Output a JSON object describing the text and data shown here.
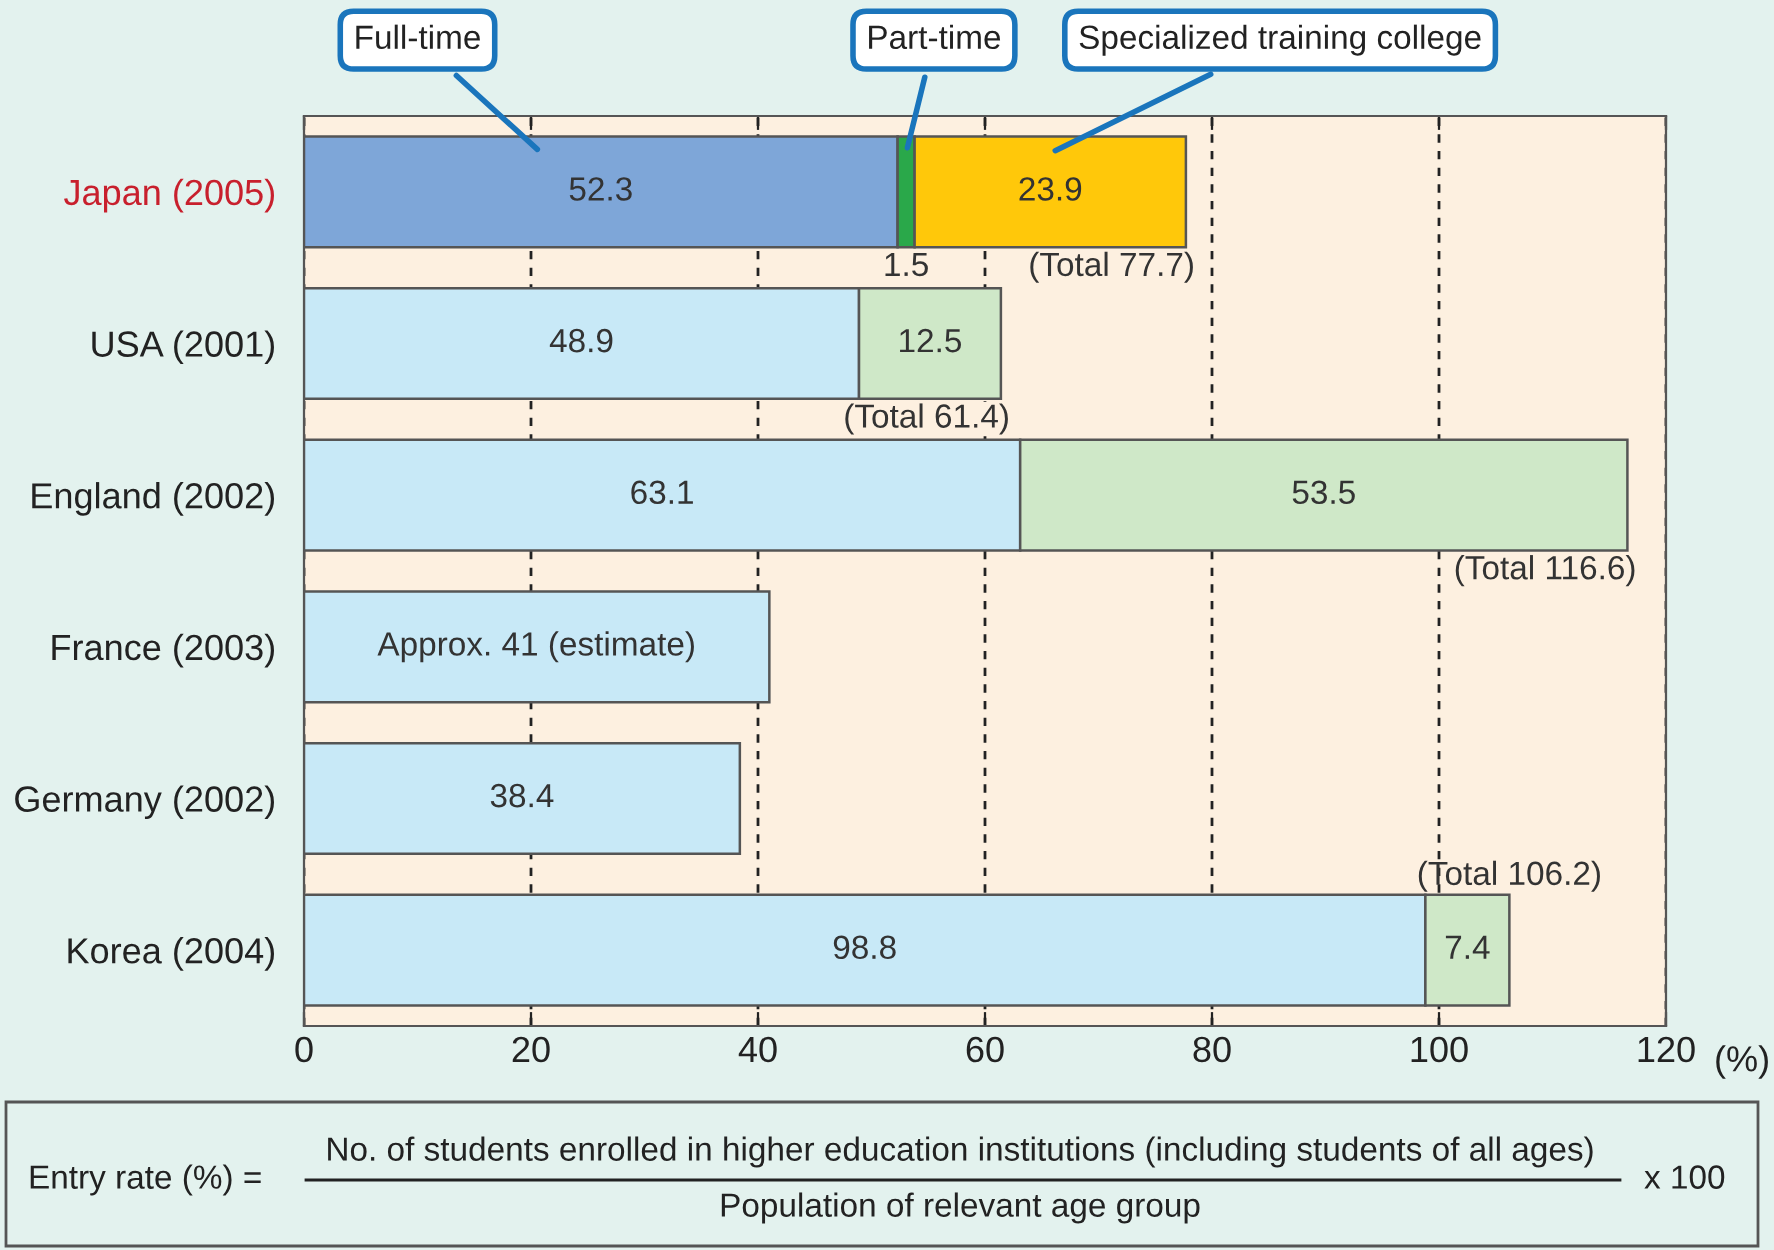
{
  "chart_data": {
    "type": "bar",
    "orientation": "horizontal",
    "stacked": true,
    "categories": [
      "Japan (2005)",
      "USA (2001)",
      "England (2002)",
      "France (2003)",
      "Germany (2002)",
      "Korea (2004)"
    ],
    "series": [
      {
        "name": "Full-time",
        "colors": [
          "#7ea6d8",
          "#c8e9f7",
          "#c8e9f7",
          "#c8e9f7",
          "#c8e9f7",
          "#c8e9f7"
        ],
        "values": [
          52.3,
          48.9,
          63.1,
          41,
          38.4,
          98.8
        ],
        "value_labels": [
          "52.3",
          "48.9",
          "63.1",
          "Approx. 41 (estimate)",
          "38.4",
          "98.8"
        ]
      },
      {
        "name": "Part-time",
        "colors": [
          "#2aa84a",
          "#cfe8c8",
          "#cfe8c8",
          "#cfe8c8",
          "#cfe8c8",
          "#cfe8c8"
        ],
        "values": [
          1.5,
          12.5,
          53.5,
          null,
          null,
          7.4
        ],
        "value_labels": [
          "1.5",
          "12.5",
          "53.5",
          null,
          null,
          "7.4"
        ]
      },
      {
        "name": "Specialized training college",
        "colors": [
          "#ffc80a",
          null,
          null,
          null,
          null,
          null
        ],
        "values": [
          23.9,
          null,
          null,
          null,
          null,
          null
        ],
        "value_labels": [
          "23.9",
          null,
          null,
          null,
          null,
          null
        ]
      }
    ],
    "totals": [
      "(Total 77.7)",
      "(Total 61.4)",
      "(Total 116.6)",
      null,
      null,
      "(Total 106.2)"
    ],
    "xlim": [
      0,
      120
    ],
    "xticks": [
      0,
      20,
      40,
      60,
      80,
      100,
      120
    ],
    "xlabel": "(%)",
    "grid": "x",
    "annotations": [
      "Entry rate (%) =",
      "No. of students enrolled in higher education institutions (including students of all ages)",
      "Population of relevant age group",
      "x 100"
    ]
  }
}
